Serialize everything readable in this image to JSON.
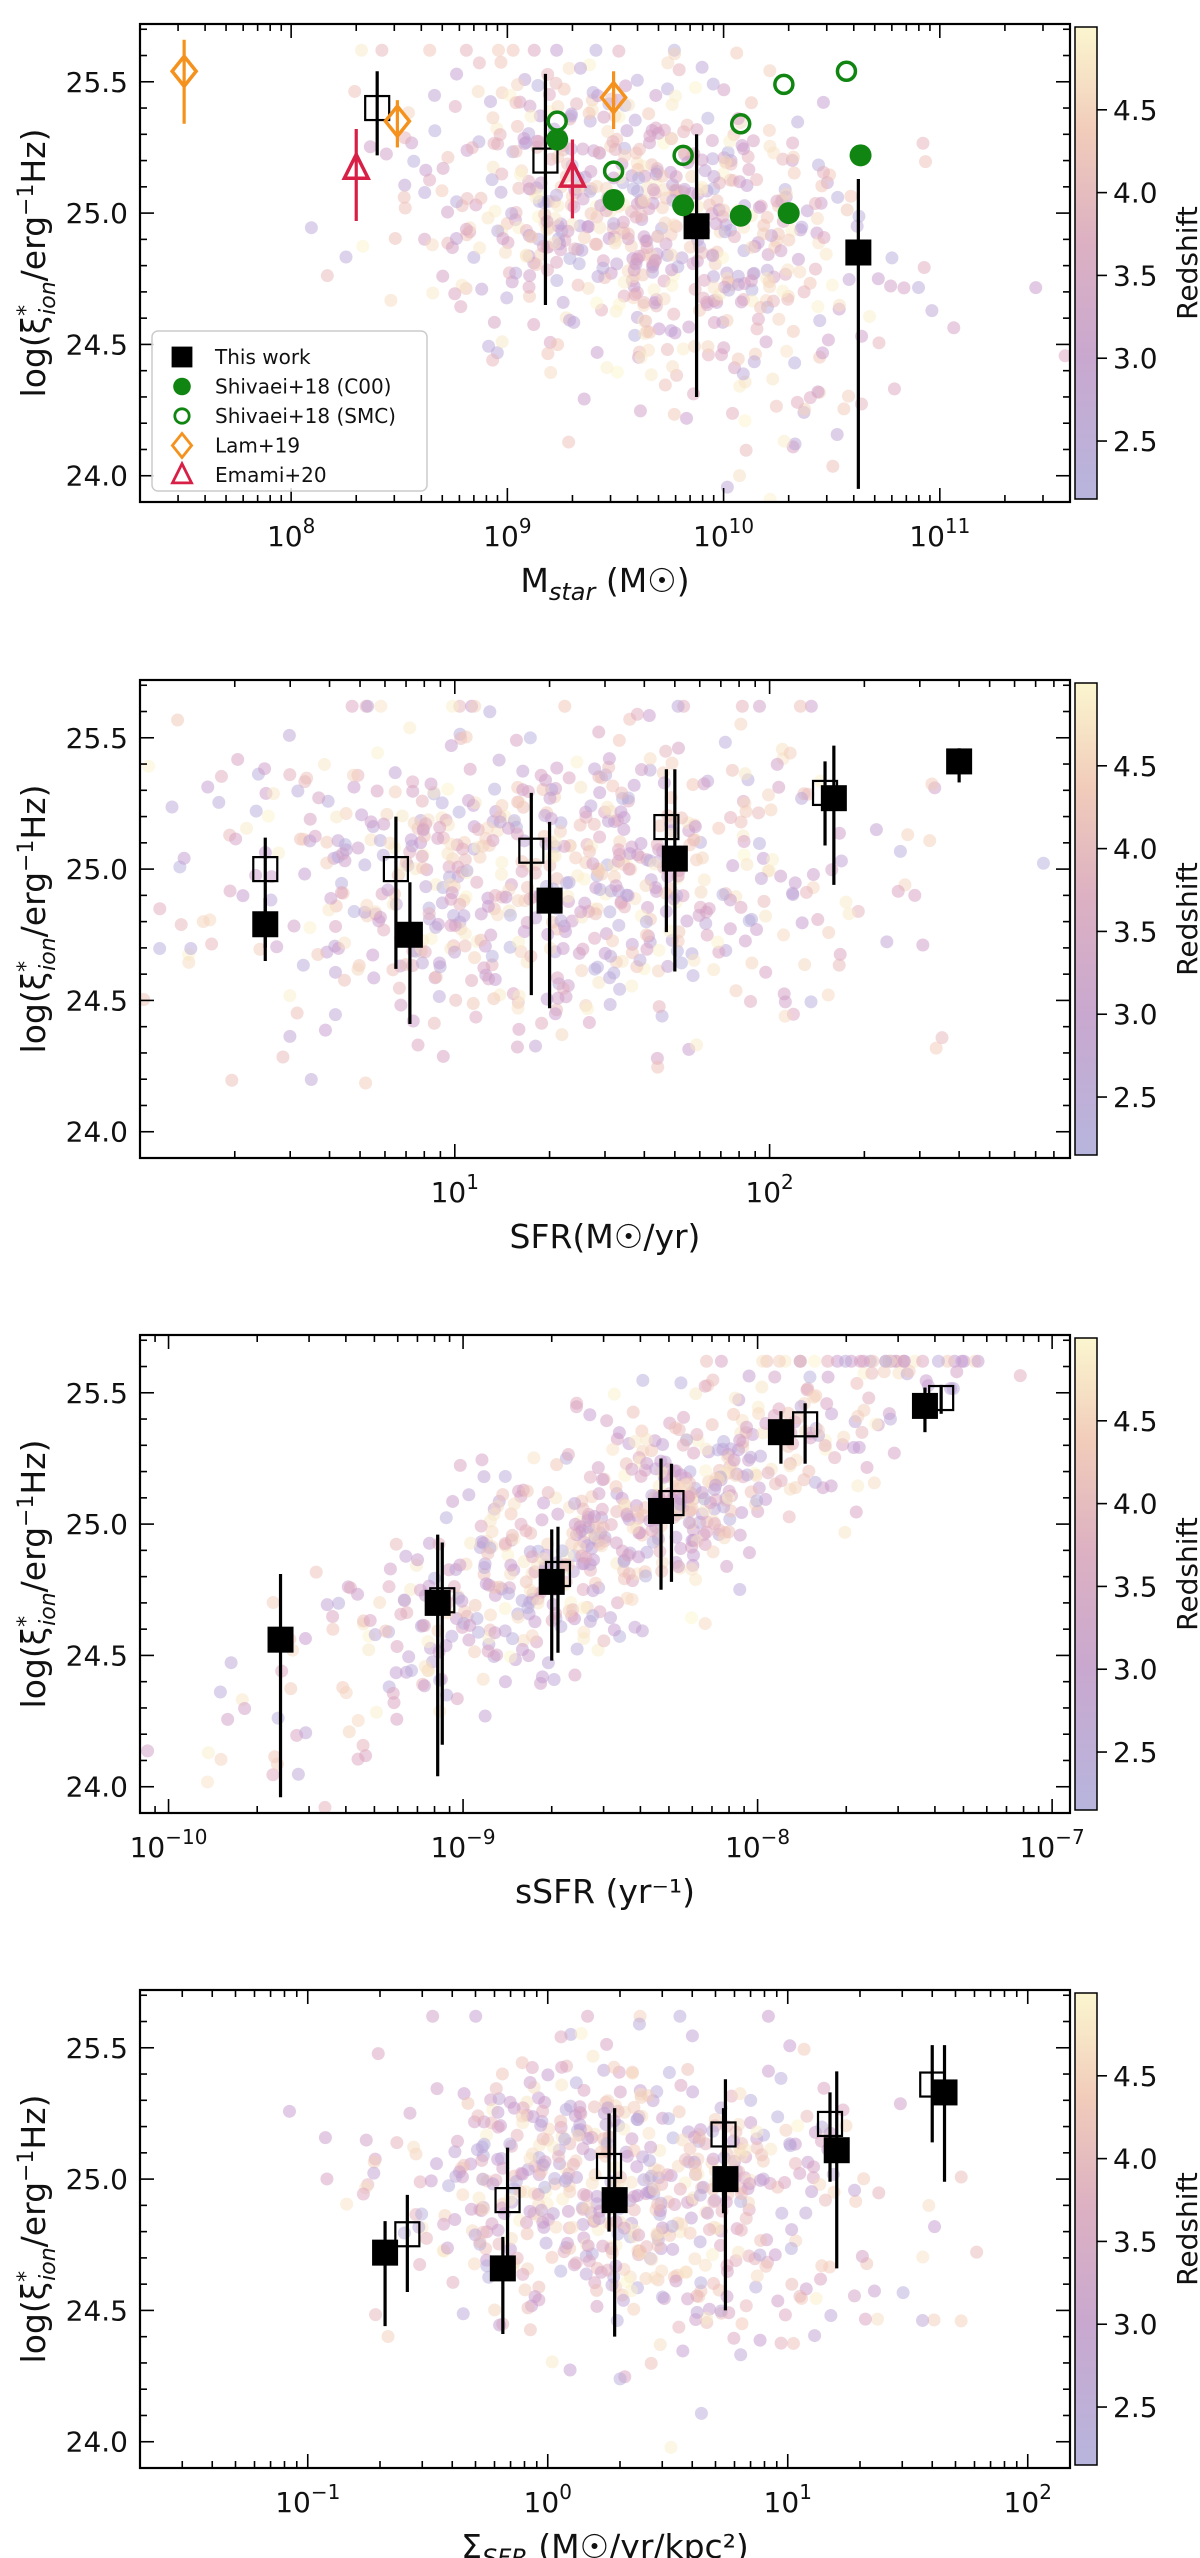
{
  "figure": {
    "colorbar_label": "Redshift",
    "colorbar_ticks": [
      2.5,
      3.0,
      3.5,
      4.0,
      4.5
    ],
    "colorbar_range": [
      2.15,
      5.0
    ],
    "colormap_stops": [
      "#b7b5dd",
      "#c7a7cf",
      "#dcb0c3",
      "#f0cbb9",
      "#fbf6cf"
    ],
    "y_axis_label": "log(ξ*ion/erg⁻¹Hz)"
  },
  "chart_data": [
    {
      "type": "scatter",
      "id": "mstar",
      "xscale": "log",
      "xlim": [
        20000000,
        400000000000
      ],
      "ylim": [
        23.9,
        25.72
      ],
      "xlabel": "M",
      "xlabel_sub": "star",
      "xlabel_suffix": " (M☉)",
      "xticks": [
        {
          "value": 100000000,
          "base": "10",
          "exp": "8"
        },
        {
          "value": 1000000000,
          "base": "10",
          "exp": "9"
        },
        {
          "value": 10000000000,
          "base": "10",
          "exp": "10"
        },
        {
          "value": 100000000000,
          "base": "10",
          "exp": "11"
        }
      ],
      "yticks": [
        24.0,
        24.5,
        25.0,
        25.5
      ],
      "cloud": {
        "x_center_log": 9.65,
        "x_spread": 0.55,
        "y_center": 24.95,
        "y_spread": 0.3,
        "seed": 11,
        "count": 700
      },
      "series": [
        {
          "name": "This work",
          "marker": "square-filled",
          "color": "#000000",
          "points": [
            {
              "x": 7500000000,
              "y": 24.95,
              "yerr": [
                0.65,
                0.35
              ]
            },
            {
              "x": 42000000000,
              "y": 24.85,
              "yerr": [
                0.9,
                0.28
              ]
            }
          ]
        },
        {
          "name": "This work (open)",
          "legend": false,
          "marker": "square-open",
          "color": "#000000",
          "points": [
            {
              "x": 250000000,
              "y": 25.4,
              "yerr": [
                0.18,
                0.14
              ]
            },
            {
              "x": 1500000000,
              "y": 25.2,
              "yerr": [
                0.55,
                0.33
              ]
            }
          ]
        },
        {
          "name": "Shivaei+18 (C00)",
          "marker": "circle-filled",
          "color": "#118511",
          "points": [
            {
              "x": 3100000000,
              "y": 25.05
            },
            {
              "x": 6500000000,
              "y": 25.03
            },
            {
              "x": 12000000000,
              "y": 24.99
            },
            {
              "x": 20000000000,
              "y": 25.0
            },
            {
              "x": 43000000000,
              "y": 25.22
            },
            {
              "x": 1700000000,
              "y": 25.28
            }
          ]
        },
        {
          "name": "Shivaei+18 (SMC)",
          "marker": "circle-open",
          "color": "#118511",
          "points": [
            {
              "x": 1700000000,
              "y": 25.35
            },
            {
              "x": 3100000000,
              "y": 25.16
            },
            {
              "x": 6500000000,
              "y": 25.22
            },
            {
              "x": 12000000000,
              "y": 25.34
            },
            {
              "x": 19000000000,
              "y": 25.49
            },
            {
              "x": 37000000000,
              "y": 25.54
            }
          ]
        },
        {
          "name": "Lam+19",
          "marker": "diamond-open",
          "color": "#f5921d",
          "points": [
            {
              "x": 32000000,
              "y": 25.54,
              "yerr": [
                0.2,
                0.12
              ]
            },
            {
              "x": 310000000,
              "y": 25.35,
              "yerr": [
                0.1,
                0.08
              ]
            },
            {
              "x": 3100000000,
              "y": 25.44,
              "yerr": [
                0.12,
                0.1
              ]
            }
          ]
        },
        {
          "name": "Emami+20",
          "marker": "triangle-open",
          "color": "#d81f45",
          "points": [
            {
              "x": 200000000,
              "y": 25.17,
              "yerr": [
                0.2,
                0.15
              ]
            },
            {
              "x": 2000000000,
              "y": 25.14,
              "yerr": [
                0.16,
                0.14
              ]
            }
          ]
        }
      ],
      "legend": {
        "position": "lower-left"
      }
    },
    {
      "type": "scatter",
      "id": "sfr",
      "xscale": "log",
      "xlim": [
        1,
        900
      ],
      "ylim": [
        23.9,
        25.72
      ],
      "xlabel": "SFR(M☉/yr)",
      "xticks": [
        {
          "value": 10,
          "base": "10",
          "exp": "1"
        },
        {
          "value": 100,
          "base": "10",
          "exp": "2"
        }
      ],
      "yticks": [
        24.0,
        24.5,
        25.0,
        25.5
      ],
      "cloud": {
        "x_center_log": 1.25,
        "x_spread": 0.5,
        "y_center": 24.95,
        "y_spread": 0.3,
        "seed": 23,
        "count": 700
      },
      "series": [
        {
          "name": "This work",
          "marker": "square-filled",
          "color": "#000000",
          "points": [
            {
              "x": 2.5,
              "y": 24.79,
              "yerr": [
                0.14,
                0.1
              ]
            },
            {
              "x": 7.2,
              "y": 24.75,
              "yerr": [
                0.34,
                0.2
              ]
            },
            {
              "x": 20,
              "y": 24.88,
              "yerr": [
                0.41,
                0.3
              ]
            },
            {
              "x": 50,
              "y": 25.04,
              "yerr": [
                0.43,
                0.34
              ]
            },
            {
              "x": 160,
              "y": 25.27,
              "yerr": [
                0.33,
                0.2
              ]
            },
            {
              "x": 400,
              "y": 25.41,
              "yerr": [
                0.08,
                0.05
              ]
            }
          ]
        },
        {
          "name": "This work (open)",
          "legend": false,
          "marker": "square-open",
          "color": "#000000",
          "points": [
            {
              "x": 2.5,
              "y": 25.0,
              "yerr": [
                0.3,
                0.12
              ]
            },
            {
              "x": 6.5,
              "y": 25.0,
              "yerr": [
                0.38,
                0.2
              ]
            },
            {
              "x": 17.5,
              "y": 25.07,
              "yerr": [
                0.55,
                0.22
              ]
            },
            {
              "x": 47,
              "y": 25.16,
              "yerr": [
                0.4,
                0.22
              ]
            },
            {
              "x": 150,
              "y": 25.29,
              "yerr": [
                0.2,
                0.12
              ]
            }
          ]
        }
      ]
    },
    {
      "type": "scatter",
      "id": "ssfr",
      "xscale": "log",
      "xlim": [
        8e-11,
        1.15e-07
      ],
      "ylim": [
        23.9,
        25.72
      ],
      "xlabel": "sSFR (yr⁻¹)",
      "xticks": [
        {
          "value": 1e-10,
          "base": "10",
          "exp": "−10"
        },
        {
          "value": 1e-09,
          "base": "10",
          "exp": "−9"
        },
        {
          "value": 1e-08,
          "base": "10",
          "exp": "−8"
        },
        {
          "value": 1e-07,
          "base": "10",
          "exp": "−7"
        }
      ],
      "yticks": [
        24.0,
        24.5,
        25.0,
        25.5
      ],
      "cloud": {
        "x_center_log": -8.45,
        "x_spread": 0.55,
        "y_center": 25.0,
        "y_spread": 0.2,
        "trend": 0.58,
        "seed": 37,
        "count": 700
      },
      "series": [
        {
          "name": "This work",
          "marker": "square-filled",
          "color": "#000000",
          "points": [
            {
              "x": 2.4e-10,
              "y": 24.56,
              "yerr": [
                0.6,
                0.25
              ]
            },
            {
              "x": 8.2e-10,
              "y": 24.7,
              "yerr": [
                0.66,
                0.26
              ]
            },
            {
              "x": 2e-09,
              "y": 24.78,
              "yerr": [
                0.3,
                0.2
              ]
            },
            {
              "x": 4.7e-09,
              "y": 25.05,
              "yerr": [
                0.3,
                0.2
              ]
            },
            {
              "x": 1.2e-08,
              "y": 25.35,
              "yerr": [
                0.12,
                0.08
              ]
            },
            {
              "x": 3.7e-08,
              "y": 25.45,
              "yerr": [
                0.1,
                0.07
              ]
            }
          ]
        },
        {
          "name": "This work (open)",
          "legend": false,
          "marker": "square-open",
          "color": "#000000",
          "points": [
            {
              "x": 8.5e-10,
              "y": 24.71,
              "yerr": [
                0.55,
                0.22
              ]
            },
            {
              "x": 2.1e-09,
              "y": 24.81,
              "yerr": [
                0.3,
                0.18
              ]
            },
            {
              "x": 5.1e-09,
              "y": 25.08,
              "yerr": [
                0.3,
                0.15
              ]
            },
            {
              "x": 1.45e-08,
              "y": 25.38,
              "yerr": [
                0.15,
                0.08
              ]
            },
            {
              "x": 4.2e-08,
              "y": 25.48,
              "yerr": [
                0.06,
                0.05
              ]
            }
          ]
        }
      ]
    },
    {
      "type": "scatter",
      "id": "sigma",
      "xscale": "log",
      "xlim": [
        0.02,
        150
      ],
      "ylim": [
        23.9,
        25.72
      ],
      "xlabel": "Σ",
      "xlabel_sub": "SFR",
      "xlabel_suffix": " (M☉/yr/kpc²)",
      "xticks": [
        {
          "value": 0.1,
          "base": "10",
          "exp": "−1"
        },
        {
          "value": 1,
          "base": "10",
          "exp": "0"
        },
        {
          "value": 10,
          "base": "10",
          "exp": "1"
        },
        {
          "value": 100,
          "base": "10",
          "exp": "2"
        }
      ],
      "yticks": [
        24.0,
        24.5,
        25.0,
        25.5
      ],
      "cloud": {
        "x_center_log": 0.35,
        "x_spread": 0.5,
        "y_center": 24.95,
        "y_spread": 0.28,
        "seed": 53,
        "count": 650
      },
      "series": [
        {
          "name": "This work",
          "marker": "square-filled",
          "color": "#000000",
          "points": [
            {
              "x": 0.21,
              "y": 24.72,
              "yerr": [
                0.28,
                0.12
              ]
            },
            {
              "x": 0.65,
              "y": 24.66,
              "yerr": [
                0.25,
                0.12
              ]
            },
            {
              "x": 1.9,
              "y": 24.92,
              "yerr": [
                0.52,
                0.35
              ]
            },
            {
              "x": 5.5,
              "y": 25.0,
              "yerr": [
                0.5,
                0.38
              ]
            },
            {
              "x": 16,
              "y": 25.11,
              "yerr": [
                0.45,
                0.3
              ]
            },
            {
              "x": 45,
              "y": 25.33,
              "yerr": [
                0.34,
                0.18
              ]
            }
          ]
        },
        {
          "name": "This work (open)",
          "legend": false,
          "marker": "square-open",
          "color": "#000000",
          "points": [
            {
              "x": 0.26,
              "y": 24.79,
              "yerr": [
                0.22,
                0.15
              ]
            },
            {
              "x": 0.68,
              "y": 24.92,
              "yerr": [
                0.3,
                0.2
              ]
            },
            {
              "x": 1.8,
              "y": 25.05,
              "yerr": [
                0.25,
                0.2
              ]
            },
            {
              "x": 5.4,
              "y": 25.17,
              "yerr": [
                0.3,
                0.1
              ]
            },
            {
              "x": 15,
              "y": 25.21,
              "yerr": [
                0.22,
                0.12
              ]
            },
            {
              "x": 40,
              "y": 25.36,
              "yerr": [
                0.22,
                0.15
              ]
            }
          ]
        }
      ]
    }
  ]
}
